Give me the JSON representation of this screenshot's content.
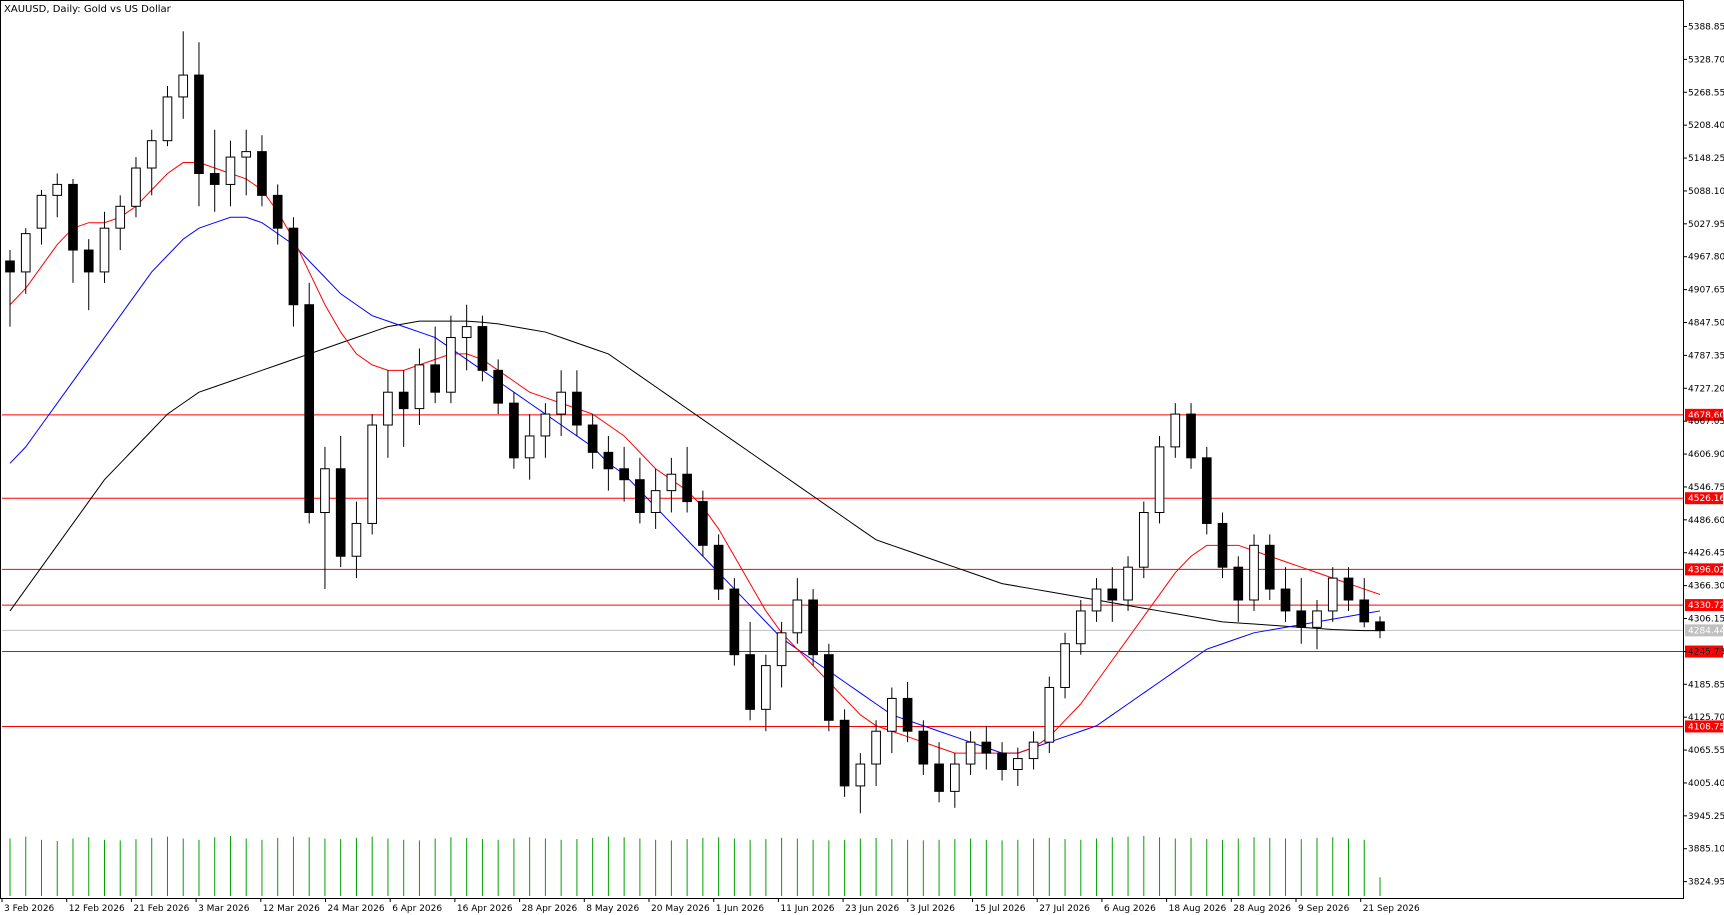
{
  "title": "XAUUSD, Daily:  Gold vs US Dollar",
  "colors": {
    "background": "#ffffff",
    "axis": "#000000",
    "candle_bull": "#ffffff",
    "candle_bear": "#000000",
    "ma_fast": "#ff0000",
    "ma_mid": "#0000ff",
    "ma_slow": "#000000",
    "level_line": "#ff0000",
    "current_price_line": "#c0c0c0",
    "volume": "#00a000"
  },
  "chart_data": {
    "type": "candlestick",
    "symbol": "XAUUSD",
    "timeframe": "Daily",
    "ylim": [
      3795,
      5419
    ],
    "y_ticks": [
      "5388.85",
      "5328.70",
      "5268.55",
      "5208.40",
      "5148.25",
      "5088.10",
      "5027.95",
      "4967.80",
      "4907.65",
      "4847.50",
      "4787.35",
      "4727.20",
      "4667.05",
      "4606.90",
      "4546.75",
      "4486.60",
      "4426.45",
      "4366.30",
      "4306.15",
      "4245.73",
      "4185.85",
      "4125.70",
      "4065.55",
      "4005.40",
      "3945.25",
      "3885.10",
      "3824.95"
    ],
    "x_tick_labels": [
      "3 Feb 2026",
      "12 Feb 2026",
      "21 Feb 2026",
      "3 Mar 2026",
      "12 Mar 2026",
      "24 Mar 2026",
      "6 Apr 2026",
      "16 Apr 2026",
      "28 Apr 2026",
      "8 May 2026",
      "20 May 2026",
      "1 Jun 2026",
      "11 Jun 2026",
      "23 Jun 2026",
      "3 Jul 2026",
      "15 Jul 2026",
      "27 Jul 2026",
      "6 Aug 2026",
      "18 Aug 2026",
      "28 Aug 2026",
      "9 Sep 2026",
      "21 Sep 2026"
    ],
    "horizontal_levels": [
      4678.6,
      4526.16,
      4396.02,
      4330.72,
      4245.73,
      4108.75
    ],
    "current_price": 4284.44,
    "candles": [
      [
        4960,
        4980,
        4840,
        4940
      ],
      [
        4940,
        5020,
        4900,
        5010
      ],
      [
        5020,
        5090,
        4990,
        5080
      ],
      [
        5080,
        5120,
        5040,
        5100
      ],
      [
        5100,
        5110,
        4920,
        4980
      ],
      [
        4980,
        5000,
        4870,
        4940
      ],
      [
        4940,
        5050,
        4920,
        5020
      ],
      [
        5020,
        5080,
        4980,
        5060
      ],
      [
        5060,
        5150,
        5040,
        5130
      ],
      [
        5130,
        5200,
        5080,
        5180
      ],
      [
        5180,
        5280,
        5170,
        5260
      ],
      [
        5260,
        5380,
        5220,
        5300
      ],
      [
        5300,
        5360,
        5060,
        5120
      ],
      [
        5120,
        5200,
        5050,
        5100
      ],
      [
        5100,
        5180,
        5060,
        5150
      ],
      [
        5150,
        5200,
        5080,
        5160
      ],
      [
        5160,
        5190,
        5060,
        5080
      ],
      [
        5080,
        5100,
        4990,
        5020
      ],
      [
        5020,
        5040,
        4840,
        4880
      ],
      [
        4880,
        4920,
        4480,
        4500
      ],
      [
        4500,
        4620,
        4360,
        4580
      ],
      [
        4580,
        4640,
        4400,
        4420
      ],
      [
        4420,
        4520,
        4380,
        4480
      ],
      [
        4480,
        4680,
        4460,
        4660
      ],
      [
        4660,
        4760,
        4600,
        4720
      ],
      [
        4720,
        4760,
        4620,
        4690
      ],
      [
        4690,
        4800,
        4660,
        4770
      ],
      [
        4770,
        4840,
        4700,
        4720
      ],
      [
        4720,
        4860,
        4700,
        4820
      ],
      [
        4820,
        4880,
        4760,
        4840
      ],
      [
        4840,
        4860,
        4740,
        4760
      ],
      [
        4760,
        4780,
        4680,
        4700
      ],
      [
        4700,
        4720,
        4580,
        4600
      ],
      [
        4600,
        4680,
        4560,
        4640
      ],
      [
        4640,
        4700,
        4600,
        4680
      ],
      [
        4680,
        4760,
        4640,
        4720
      ],
      [
        4720,
        4760,
        4640,
        4660
      ],
      [
        4660,
        4680,
        4580,
        4610
      ],
      [
        4610,
        4640,
        4540,
        4580
      ],
      [
        4580,
        4620,
        4520,
        4560
      ],
      [
        4560,
        4600,
        4480,
        4500
      ],
      [
        4500,
        4580,
        4470,
        4540
      ],
      [
        4540,
        4600,
        4500,
        4570
      ],
      [
        4570,
        4620,
        4500,
        4520
      ],
      [
        4520,
        4540,
        4420,
        4440
      ],
      [
        4440,
        4460,
        4340,
        4360
      ],
      [
        4360,
        4380,
        4220,
        4240
      ],
      [
        4240,
        4300,
        4120,
        4140
      ],
      [
        4140,
        4240,
        4100,
        4220
      ],
      [
        4220,
        4300,
        4180,
        4280
      ],
      [
        4280,
        4380,
        4260,
        4340
      ],
      [
        4340,
        4360,
        4220,
        4240
      ],
      [
        4240,
        4260,
        4100,
        4120
      ],
      [
        4120,
        4140,
        3980,
        4000
      ],
      [
        4000,
        4060,
        3950,
        4040
      ],
      [
        4040,
        4120,
        4000,
        4100
      ],
      [
        4100,
        4180,
        4060,
        4160
      ],
      [
        4160,
        4190,
        4080,
        4100
      ],
      [
        4100,
        4120,
        4020,
        4040
      ],
      [
        4040,
        4080,
        3970,
        3990
      ],
      [
        3990,
        4060,
        3960,
        4040
      ],
      [
        4040,
        4100,
        4020,
        4080
      ],
      [
        4080,
        4110,
        4030,
        4060
      ],
      [
        4060,
        4080,
        4010,
        4030
      ],
      [
        4030,
        4070,
        4000,
        4050
      ],
      [
        4050,
        4100,
        4030,
        4080
      ],
      [
        4080,
        4200,
        4060,
        4180
      ],
      [
        4180,
        4280,
        4160,
        4260
      ],
      [
        4260,
        4340,
        4240,
        4320
      ],
      [
        4320,
        4380,
        4300,
        4360
      ],
      [
        4360,
        4400,
        4300,
        4340
      ],
      [
        4340,
        4420,
        4320,
        4400
      ],
      [
        4400,
        4520,
        4380,
        4500
      ],
      [
        4500,
        4640,
        4480,
        4620
      ],
      [
        4620,
        4700,
        4600,
        4680
      ],
      [
        4680,
        4700,
        4580,
        4600
      ],
      [
        4600,
        4620,
        4460,
        4480
      ],
      [
        4480,
        4500,
        4380,
        4400
      ],
      [
        4400,
        4420,
        4300,
        4340
      ],
      [
        4340,
        4460,
        4320,
        4440
      ],
      [
        4440,
        4460,
        4340,
        4360
      ],
      [
        4360,
        4400,
        4300,
        4320
      ],
      [
        4320,
        4380,
        4260,
        4290
      ],
      [
        4290,
        4340,
        4250,
        4320
      ],
      [
        4320,
        4400,
        4300,
        4380
      ],
      [
        4380,
        4400,
        4320,
        4340
      ],
      [
        4340,
        4380,
        4290,
        4300
      ],
      [
        4300,
        4310,
        4270,
        4284
      ]
    ],
    "ma_fast": [
      4880,
      4910,
      4950,
      4990,
      5020,
      5030,
      5030,
      5040,
      5060,
      5090,
      5120,
      5140,
      5140,
      5130,
      5120,
      5110,
      5090,
      5050,
      5000,
      4940,
      4880,
      4830,
      4790,
      4770,
      4760,
      4760,
      4770,
      4780,
      4790,
      4790,
      4780,
      4760,
      4740,
      4720,
      4710,
      4700,
      4690,
      4680,
      4660,
      4640,
      4610,
      4580,
      4560,
      4540,
      4510,
      4470,
      4420,
      4370,
      4320,
      4280,
      4250,
      4220,
      4190,
      4160,
      4130,
      4110,
      4100,
      4090,
      4080,
      4070,
      4060,
      4060,
      4060,
      4060,
      4060,
      4070,
      4090,
      4120,
      4150,
      4190,
      4230,
      4270,
      4310,
      4350,
      4390,
      4420,
      4440,
      4440,
      4440,
      4430,
      4420,
      4410,
      4400,
      4390,
      4380,
      4370,
      4360,
      4350
    ],
    "ma_mid": [
      4590,
      4620,
      4660,
      4700,
      4740,
      4780,
      4820,
      4860,
      4900,
      4940,
      4970,
      5000,
      5020,
      5030,
      5040,
      5040,
      5030,
      5010,
      4990,
      4960,
      4930,
      4900,
      4880,
      4860,
      4850,
      4840,
      4830,
      4820,
      4800,
      4780,
      4760,
      4740,
      4720,
      4700,
      4680,
      4660,
      4640,
      4620,
      4590,
      4570,
      4540,
      4510,
      4480,
      4450,
      4420,
      4390,
      4360,
      4330,
      4300,
      4270,
      4250,
      4230,
      4210,
      4190,
      4170,
      4150,
      4130,
      4120,
      4110,
      4100,
      4090,
      4080,
      4070,
      4060,
      4060,
      4070,
      4080,
      4090,
      4100,
      4110,
      4130,
      4150,
      4170,
      4190,
      4210,
      4230,
      4250,
      4260,
      4270,
      4280,
      4285,
      4290,
      4295,
      4300,
      4305,
      4310,
      4315,
      4320
    ],
    "ma_slow": [
      4320,
      4360,
      4400,
      4440,
      4480,
      4520,
      4560,
      4590,
      4620,
      4650,
      4680,
      4700,
      4720,
      4730,
      4740,
      4750,
      4760,
      4770,
      4780,
      4790,
      4800,
      4810,
      4820,
      4830,
      4840,
      4845,
      4850,
      4850,
      4850,
      4850,
      4848,
      4845,
      4840,
      4835,
      4830,
      4820,
      4810,
      4800,
      4790,
      4770,
      4750,
      4730,
      4710,
      4690,
      4670,
      4650,
      4630,
      4610,
      4590,
      4570,
      4550,
      4530,
      4510,
      4490,
      4470,
      4450,
      4440,
      4430,
      4420,
      4410,
      4400,
      4390,
      4380,
      4370,
      4365,
      4360,
      4355,
      4350,
      4345,
      4340,
      4335,
      4330,
      4325,
      4320,
      4315,
      4310,
      4305,
      4300,
      4298,
      4296,
      4294,
      4292,
      4290,
      4288,
      4286,
      4285,
      4284,
      4284
    ],
    "volume": [
      92,
      95,
      90,
      88,
      92,
      94,
      90,
      89,
      91,
      93,
      95,
      92,
      90,
      94,
      96,
      92,
      90,
      93,
      95,
      94,
      92,
      91,
      93,
      95,
      92,
      90,
      89,
      92,
      94,
      93,
      91,
      90,
      92,
      94,
      92,
      90,
      91,
      93,
      95,
      94,
      92,
      90,
      89,
      91,
      93,
      94,
      92,
      90,
      91,
      93,
      92,
      90,
      89,
      90,
      92,
      93,
      91,
      90,
      89,
      90,
      91,
      92,
      90,
      89,
      90,
      92,
      93,
      91,
      90,
      92,
      94,
      95,
      96,
      94,
      92,
      93,
      91,
      90,
      92,
      94,
      93,
      92,
      91,
      93,
      94,
      92,
      90,
      30
    ]
  },
  "labels": {
    "levels": [
      "4678.60",
      "4526.16",
      "4396.02",
      "4330.72",
      "4245.73",
      "4108.75"
    ],
    "current_price": "4284.44"
  }
}
